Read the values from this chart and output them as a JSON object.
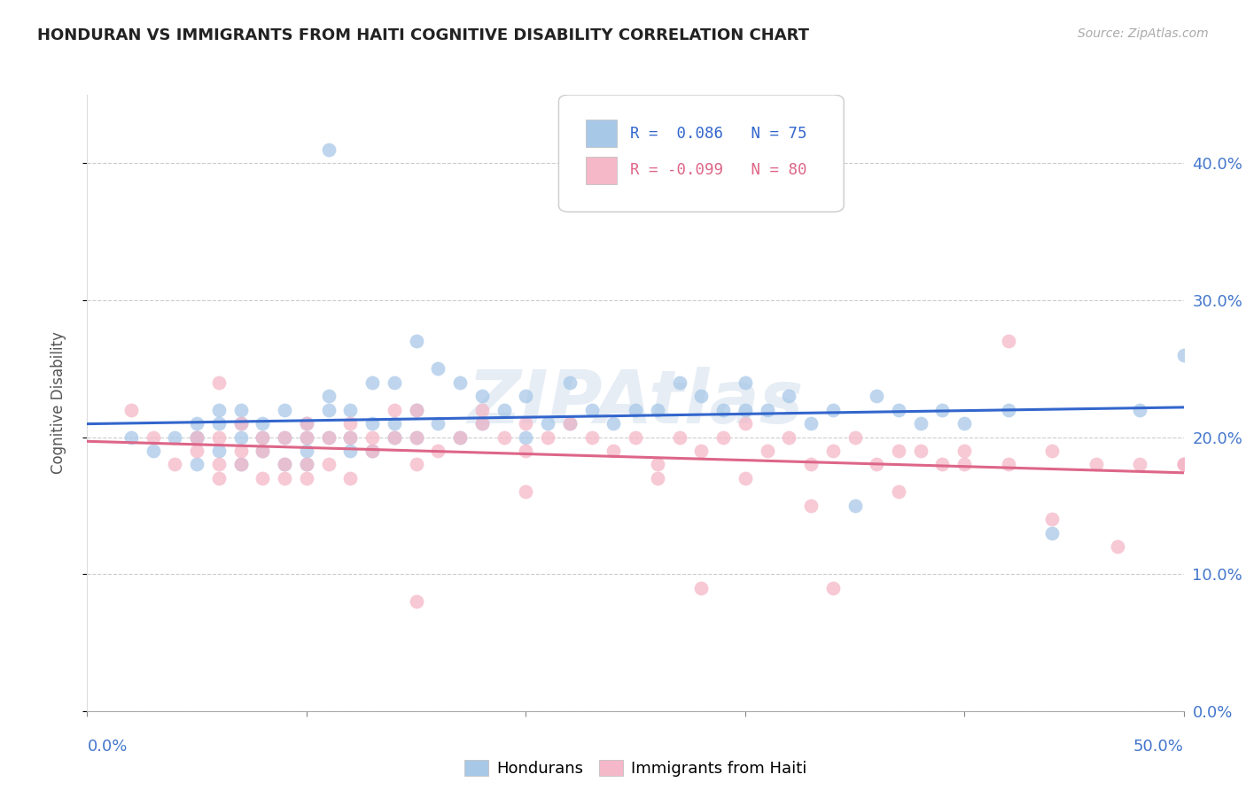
{
  "title": "HONDURAN VS IMMIGRANTS FROM HAITI COGNITIVE DISABILITY CORRELATION CHART",
  "source": "Source: ZipAtlas.com",
  "ylabel": "Cognitive Disability",
  "xlim": [
    0.0,
    0.5
  ],
  "ylim": [
    0.0,
    0.45
  ],
  "yticks": [
    0.0,
    0.1,
    0.2,
    0.3,
    0.4
  ],
  "xticks": [
    0.0,
    0.1,
    0.2,
    0.3,
    0.4,
    0.5
  ],
  "watermark": "ZIPAtlas",
  "legend": {
    "blue_r": 0.086,
    "blue_n": 75,
    "pink_r": -0.099,
    "pink_n": 80
  },
  "blue_color": "#a8c8e8",
  "pink_color": "#f4b8c8",
  "blue_line_color": "#3366cc",
  "pink_line_color": "#dd6688",
  "grid_color": "#cccccc",
  "title_color": "#222222",
  "axis_label_color": "#555555",
  "tick_label_color": "#4477cc",
  "blue_scatter_x": [
    0.02,
    0.03,
    0.04,
    0.05,
    0.05,
    0.05,
    0.05,
    0.06,
    0.06,
    0.06,
    0.07,
    0.07,
    0.07,
    0.07,
    0.08,
    0.08,
    0.08,
    0.09,
    0.09,
    0.09,
    0.1,
    0.1,
    0.1,
    0.1,
    0.11,
    0.11,
    0.11,
    0.12,
    0.12,
    0.12,
    0.13,
    0.13,
    0.13,
    0.14,
    0.14,
    0.14,
    0.15,
    0.15,
    0.15,
    0.16,
    0.16,
    0.17,
    0.17,
    0.18,
    0.18,
    0.19,
    0.2,
    0.2,
    0.21,
    0.22,
    0.22,
    0.23,
    0.24,
    0.25,
    0.26,
    0.27,
    0.28,
    0.29,
    0.3,
    0.3,
    0.31,
    0.32,
    0.33,
    0.34,
    0.35,
    0.36,
    0.37,
    0.38,
    0.39,
    0.4,
    0.42,
    0.44,
    0.48,
    0.5,
    0.11
  ],
  "blue_scatter_y": [
    0.2,
    0.19,
    0.2,
    0.2,
    0.21,
    0.18,
    0.2,
    0.19,
    0.21,
    0.22,
    0.18,
    0.2,
    0.21,
    0.22,
    0.19,
    0.2,
    0.21,
    0.18,
    0.2,
    0.22,
    0.18,
    0.19,
    0.21,
    0.2,
    0.2,
    0.22,
    0.23,
    0.19,
    0.2,
    0.22,
    0.19,
    0.21,
    0.24,
    0.2,
    0.21,
    0.24,
    0.2,
    0.22,
    0.27,
    0.21,
    0.25,
    0.2,
    0.24,
    0.21,
    0.23,
    0.22,
    0.2,
    0.23,
    0.21,
    0.24,
    0.21,
    0.22,
    0.21,
    0.22,
    0.22,
    0.24,
    0.23,
    0.22,
    0.24,
    0.22,
    0.22,
    0.23,
    0.21,
    0.22,
    0.15,
    0.23,
    0.22,
    0.21,
    0.22,
    0.21,
    0.22,
    0.13,
    0.22,
    0.26,
    0.41
  ],
  "pink_scatter_x": [
    0.02,
    0.03,
    0.04,
    0.05,
    0.05,
    0.06,
    0.06,
    0.06,
    0.07,
    0.07,
    0.07,
    0.08,
    0.08,
    0.08,
    0.09,
    0.09,
    0.09,
    0.1,
    0.1,
    0.1,
    0.11,
    0.11,
    0.12,
    0.12,
    0.12,
    0.13,
    0.13,
    0.14,
    0.14,
    0.15,
    0.15,
    0.15,
    0.16,
    0.17,
    0.18,
    0.19,
    0.2,
    0.2,
    0.21,
    0.22,
    0.23,
    0.24,
    0.25,
    0.26,
    0.27,
    0.28,
    0.29,
    0.3,
    0.31,
    0.32,
    0.33,
    0.34,
    0.35,
    0.36,
    0.37,
    0.38,
    0.39,
    0.4,
    0.42,
    0.44,
    0.46,
    0.48,
    0.5,
    0.06,
    0.15,
    0.2,
    0.26,
    0.3,
    0.33,
    0.37,
    0.42,
    0.44,
    0.47,
    0.5,
    0.28,
    0.34,
    0.4,
    0.5,
    0.1,
    0.18
  ],
  "pink_scatter_y": [
    0.22,
    0.2,
    0.18,
    0.19,
    0.2,
    0.17,
    0.18,
    0.2,
    0.18,
    0.19,
    0.21,
    0.17,
    0.19,
    0.2,
    0.17,
    0.18,
    0.2,
    0.18,
    0.2,
    0.21,
    0.18,
    0.2,
    0.17,
    0.2,
    0.21,
    0.19,
    0.2,
    0.2,
    0.22,
    0.18,
    0.2,
    0.22,
    0.19,
    0.2,
    0.21,
    0.2,
    0.19,
    0.21,
    0.2,
    0.21,
    0.2,
    0.19,
    0.2,
    0.18,
    0.2,
    0.19,
    0.2,
    0.21,
    0.19,
    0.2,
    0.18,
    0.19,
    0.2,
    0.18,
    0.19,
    0.19,
    0.18,
    0.19,
    0.18,
    0.19,
    0.18,
    0.18,
    0.18,
    0.24,
    0.08,
    0.16,
    0.17,
    0.17,
    0.15,
    0.16,
    0.27,
    0.14,
    0.12,
    0.18,
    0.09,
    0.09,
    0.18,
    0.18,
    0.17,
    0.22
  ]
}
